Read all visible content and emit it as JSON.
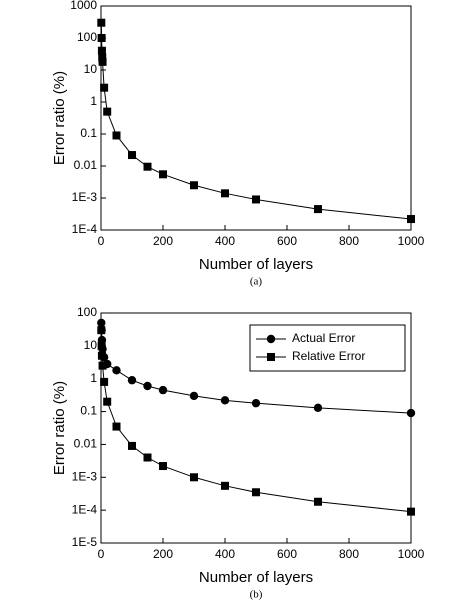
{
  "chart_data": [
    {
      "type": "line",
      "caption": "(a)",
      "xlabel": "Number of layers",
      "ylabel": "Error ratio (%)",
      "x": [
        1,
        2,
        3,
        4,
        5,
        10,
        20,
        50,
        100,
        150,
        200,
        300,
        400,
        500,
        700,
        1000
      ],
      "values": [
        300,
        100,
        40,
        25,
        18,
        2.8,
        0.5,
        0.09,
        0.022,
        0.0095,
        0.0055,
        0.0025,
        0.0014,
        0.0009,
        0.00045,
        0.00022
      ],
      "color": "#000000",
      "marker": "square",
      "xlim": [
        0,
        1000
      ],
      "xticks": [
        0,
        200,
        400,
        600,
        800,
        1000
      ],
      "ylim": [
        0.0001,
        1000
      ],
      "ylog": true,
      "yticks": [
        1000,
        100,
        10,
        1,
        0.1,
        0.01,
        {
          "value": 0.001,
          "label": "1E-3"
        },
        {
          "value": 0.0001,
          "label": "1E-4"
        }
      ]
    },
    {
      "type": "line",
      "caption": "(b)",
      "xlabel": "Number of layers",
      "ylabel": "Error ratio (%)",
      "x": [
        1,
        2,
        3,
        5,
        10,
        20,
        50,
        100,
        150,
        200,
        300,
        400,
        500,
        700,
        1000
      ],
      "series": [
        {
          "name": "Actual Error",
          "color": "#000000",
          "marker": "circle",
          "values": [
            50,
            30,
            15,
            8,
            4.5,
            2.8,
            1.8,
            0.9,
            0.6,
            0.45,
            0.3,
            0.22,
            0.18,
            0.13,
            0.09
          ]
        },
        {
          "name": "Relative Error",
          "color": "#000000",
          "marker": "square",
          "values": [
            30,
            10,
            5,
            2.5,
            0.8,
            0.2,
            0.035,
            0.009,
            0.004,
            0.0022,
            0.001,
            0.00055,
            0.00035,
            0.00018,
            9e-05
          ]
        }
      ],
      "legend": "upper right",
      "xlim": [
        0,
        1000
      ],
      "xticks": [
        0,
        200,
        400,
        600,
        800,
        1000
      ],
      "ylim": [
        1e-05,
        100
      ],
      "ylog": true,
      "yticks": [
        100,
        10,
        1,
        0.1,
        0.01,
        {
          "value": 0.001,
          "label": "1E-3"
        },
        {
          "value": 0.0001,
          "label": "1E-4"
        },
        {
          "value": 1e-05,
          "label": "1E-5"
        }
      ]
    }
  ]
}
